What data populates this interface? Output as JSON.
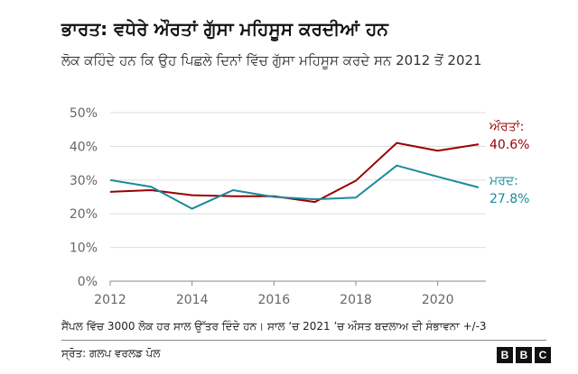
{
  "chart_data": {
    "type": "line",
    "title": "ਭਾਰਤ: ਵਧੇਰੇ ਔਰਤਾਂ ਗੁੱਸਾ ਮਹਿਸੂਸ ਕਰਦੀਆਂ ਹਨ",
    "subtitle": "ਲੋਕ ਕਹਿੰਦੇ ਹਨ ਕਿ ਉਹ ਪਿਛਲੇ ਦਿਨਾਂ ਵਿੱਚ ਗੁੱਸਾ ਮਹਿਸੂਸ ਕਰਦੇ ਸਨ 2012 ਤੋਂ 2021",
    "x": [
      2012,
      2013,
      2014,
      2015,
      2016,
      2017,
      2018,
      2019,
      2020,
      2021
    ],
    "x_ticks": [
      2012,
      2014,
      2016,
      2018,
      2020
    ],
    "x_tick_labels": [
      "2012",
      "2014",
      "2016",
      "2018",
      "2020"
    ],
    "y_ticks": [
      0,
      10,
      20,
      30,
      40,
      50
    ],
    "y_tick_labels": [
      "0%",
      "10%",
      "20%",
      "30%",
      "40%",
      "50%"
    ],
    "ylim": [
      0,
      50
    ],
    "xlim": [
      2012,
      2021
    ],
    "series": [
      {
        "name": "ਔਰਤਾਂ",
        "label": "ਔਰਤਾਂ:",
        "value_label": "40.6%",
        "color": "#990000",
        "values": [
          26.5,
          27.0,
          25.5,
          25.2,
          25.2,
          23.5,
          29.8,
          41.0,
          38.7,
          40.6
        ]
      },
      {
        "name": "ਮਰਦ",
        "label": "ਮਰਦ:",
        "value_label": "27.8%",
        "color": "#1a8a9a",
        "values": [
          30.0,
          28.0,
          21.5,
          27.0,
          25.0,
          24.3,
          24.8,
          34.3,
          31.0,
          27.8
        ]
      }
    ]
  },
  "footer": {
    "note": "ਸੈਂਪਲ ਵਿੱਚ 3000 ਲੋਕ ਹਰ ਸਾਲ ਉੱਤਰ ਦਿੰਦੇ ਹਨ। ਸਾਲ ‘ਚ 2021 ’ਚ ਔਸਤ ਬਦਲਾਅ ਦੀ ਸੰਭਾਵਨਾ +/-3",
    "source": "ਸ੍ਰੋਤ: ਗਲਪ ਵਰਲਡ ਪੋਲ",
    "logo_letters": [
      "B",
      "B",
      "C"
    ]
  }
}
